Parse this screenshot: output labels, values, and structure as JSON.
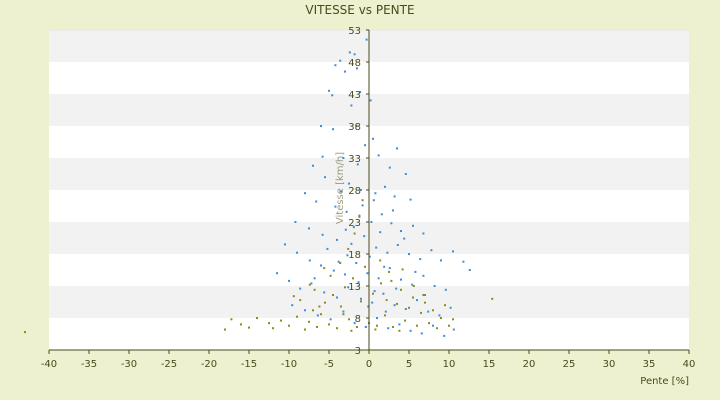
{
  "chart_data": {
    "type": "scatter",
    "title": "VITESSE vs PENTE",
    "xlabel": "Pente [%]",
    "ylabel": "Vitesse [km/h]",
    "xlim": [
      -40,
      40
    ],
    "ylim": [
      3,
      53
    ],
    "x_ticks": [
      -40,
      -35,
      -30,
      -25,
      -20,
      -15,
      -10,
      -5,
      0,
      5,
      10,
      15,
      20,
      25,
      30,
      35,
      40
    ],
    "y_ticks": [
      3,
      8,
      13,
      18,
      23,
      28,
      33,
      38,
      43,
      48,
      53
    ],
    "grid": "horizontal alternating bands",
    "legend": "none",
    "colors": {
      "background": "#eef1cf",
      "plot_band_light": "#ffffff",
      "plot_band_dark": "#f2f2f2",
      "axis": "#4a4a1c",
      "series_blue": "#3b8fd6",
      "series_olive": "#8c8c16"
    },
    "series": [
      {
        "color": "#3b8fd6",
        "points": [
          [
            -4.2,
            47.5
          ],
          [
            -3.6,
            48.2
          ],
          [
            -2.4,
            49.5
          ],
          [
            -1.8,
            49.2
          ],
          [
            -1.5,
            47.0
          ],
          [
            -3.0,
            46.5
          ],
          [
            -5.0,
            43.5
          ],
          [
            -4.6,
            42.8
          ],
          [
            -1.1,
            43.3
          ],
          [
            -0.3,
            51.5
          ],
          [
            0.2,
            42.0
          ],
          [
            -2.2,
            41.2
          ],
          [
            -6.0,
            38.0
          ],
          [
            -4.5,
            37.5
          ],
          [
            -1.6,
            38.0
          ],
          [
            0.5,
            36.0
          ],
          [
            -0.5,
            35.0
          ],
          [
            3.5,
            34.5
          ],
          [
            -5.8,
            33.2
          ],
          [
            -3.2,
            33.0
          ],
          [
            -1.4,
            32.0
          ],
          [
            1.2,
            33.4
          ],
          [
            2.6,
            31.5
          ],
          [
            4.6,
            30.5
          ],
          [
            -7.0,
            31.8
          ],
          [
            -5.5,
            30.0
          ],
          [
            -2.5,
            29.0
          ],
          [
            -1.0,
            28.0
          ],
          [
            0.8,
            27.5
          ],
          [
            2.0,
            28.5
          ],
          [
            3.2,
            27.0
          ],
          [
            5.2,
            26.5
          ],
          [
            -8.0,
            27.5
          ],
          [
            -6.6,
            26.2
          ],
          [
            -4.2,
            25.4
          ],
          [
            -2.8,
            24.6
          ],
          [
            -1.2,
            23.8
          ],
          [
            0.3,
            23.0
          ],
          [
            1.6,
            24.2
          ],
          [
            2.8,
            22.8
          ],
          [
            4.0,
            21.6
          ],
          [
            5.5,
            22.4
          ],
          [
            6.8,
            21.2
          ],
          [
            -9.2,
            23.0
          ],
          [
            -7.5,
            22.0
          ],
          [
            -5.8,
            21.0
          ],
          [
            -4.0,
            20.2
          ],
          [
            -2.2,
            19.6
          ],
          [
            -0.6,
            20.8
          ],
          [
            0.9,
            19.0
          ],
          [
            2.3,
            18.2
          ],
          [
            3.6,
            19.4
          ],
          [
            5.0,
            18.0
          ],
          [
            6.4,
            17.2
          ],
          [
            7.8,
            18.6
          ],
          [
            9.0,
            17.0
          ],
          [
            10.5,
            18.4
          ],
          [
            11.8,
            16.8
          ],
          [
            -10.5,
            19.5
          ],
          [
            -9.0,
            18.2
          ],
          [
            -7.4,
            17.0
          ],
          [
            -6.0,
            16.2
          ],
          [
            -4.4,
            15.4
          ],
          [
            -3.0,
            14.8
          ],
          [
            -1.6,
            16.6
          ],
          [
            -0.2,
            15.0
          ],
          [
            1.2,
            14.2
          ],
          [
            2.6,
            15.8
          ],
          [
            4.0,
            14.0
          ],
          [
            5.4,
            13.2
          ],
          [
            6.8,
            14.6
          ],
          [
            8.2,
            13.0
          ],
          [
            9.6,
            12.4
          ],
          [
            12.6,
            15.5
          ],
          [
            -11.5,
            15.0
          ],
          [
            -10.0,
            13.8
          ],
          [
            -8.6,
            12.6
          ],
          [
            -7.2,
            13.4
          ],
          [
            -5.6,
            12.0
          ],
          [
            -4.0,
            11.2
          ],
          [
            -2.6,
            12.8
          ],
          [
            -1.0,
            11.0
          ],
          [
            0.4,
            10.4
          ],
          [
            1.8,
            11.8
          ],
          [
            3.2,
            10.0
          ],
          [
            4.6,
            9.4
          ],
          [
            6.0,
            10.8
          ],
          [
            7.4,
            9.0
          ],
          [
            8.8,
            8.4
          ],
          [
            10.2,
            9.6
          ],
          [
            -9.6,
            10.0
          ],
          [
            -8.0,
            9.2
          ],
          [
            -6.4,
            8.4
          ],
          [
            -4.8,
            7.8
          ],
          [
            -3.2,
            9.0
          ],
          [
            -1.8,
            7.2
          ],
          [
            -0.4,
            6.6
          ],
          [
            1.0,
            8.0
          ],
          [
            2.4,
            6.4
          ],
          [
            3.8,
            7.0
          ],
          [
            5.2,
            6.0
          ],
          [
            6.6,
            5.6
          ],
          [
            8.0,
            6.8
          ],
          [
            9.4,
            5.2
          ],
          [
            10.6,
            6.2
          ],
          [
            -0.8,
            25.6
          ],
          [
            0.6,
            26.4
          ],
          [
            -1.9,
            22.2
          ],
          [
            1.4,
            21.4
          ],
          [
            -2.7,
            17.8
          ],
          [
            0.1,
            17.6
          ],
          [
            1.9,
            16.0
          ],
          [
            -1.3,
            13.6
          ],
          [
            0.7,
            12.2
          ],
          [
            -0.1,
            9.8
          ],
          [
            2.1,
            9.0
          ],
          [
            -3.5,
            27.8
          ],
          [
            -2.9,
            21.8
          ],
          [
            3.0,
            24.8
          ],
          [
            4.4,
            20.4
          ],
          [
            -5.2,
            18.8
          ],
          [
            -3.8,
            16.8
          ],
          [
            3.4,
            12.6
          ],
          [
            5.8,
            15.2
          ],
          [
            -6.8,
            14.2
          ],
          [
            7.0,
            11.6
          ]
        ]
      },
      {
        "color": "#8c8c16",
        "points": [
          [
            -43.0,
            5.8
          ],
          [
            -18.0,
            6.2
          ],
          [
            -17.2,
            7.8
          ],
          [
            -16.0,
            7.0
          ],
          [
            -15.0,
            6.5
          ],
          [
            -14.0,
            8.0
          ],
          [
            -12.5,
            7.2
          ],
          [
            -12.0,
            6.4
          ],
          [
            -11.0,
            7.6
          ],
          [
            -10.0,
            6.8
          ],
          [
            -9.0,
            8.2
          ],
          [
            -8.0,
            6.2
          ],
          [
            -7.5,
            7.4
          ],
          [
            -7.0,
            9.2
          ],
          [
            -6.5,
            6.6
          ],
          [
            -6.0,
            8.6
          ],
          [
            -5.5,
            10.4
          ],
          [
            -5.0,
            7.0
          ],
          [
            -4.5,
            11.6
          ],
          [
            -4.0,
            6.4
          ],
          [
            -3.5,
            9.8
          ],
          [
            -3.0,
            12.8
          ],
          [
            -2.5,
            7.8
          ],
          [
            -2.0,
            14.2
          ],
          [
            -1.5,
            6.6
          ],
          [
            -1.0,
            10.6
          ],
          [
            -0.5,
            16.0
          ],
          [
            0.0,
            7.2
          ],
          [
            0.5,
            11.8
          ],
          [
            1.0,
            6.8
          ],
          [
            1.5,
            13.4
          ],
          [
            2.0,
            8.4
          ],
          [
            2.5,
            15.2
          ],
          [
            3.0,
            6.6
          ],
          [
            3.5,
            10.2
          ],
          [
            4.0,
            12.4
          ],
          [
            4.5,
            7.6
          ],
          [
            5.0,
            9.6
          ],
          [
            5.5,
            11.2
          ],
          [
            6.0,
            6.8
          ],
          [
            6.5,
            8.8
          ],
          [
            7.0,
            10.4
          ],
          [
            7.5,
            7.2
          ],
          [
            8.0,
            9.2
          ],
          [
            8.5,
            6.4
          ],
          [
            9.0,
            8.0
          ],
          [
            9.5,
            10.0
          ],
          [
            10.0,
            6.8
          ],
          [
            10.5,
            7.8
          ],
          [
            15.4,
            11.0
          ],
          [
            -8.6,
            10.8
          ],
          [
            -6.8,
            12.4
          ],
          [
            -4.8,
            14.6
          ],
          [
            -3.6,
            16.6
          ],
          [
            -2.6,
            18.8
          ],
          [
            -1.8,
            21.2
          ],
          [
            -1.2,
            24.0
          ],
          [
            -0.8,
            26.4
          ],
          [
            -5.6,
            15.8
          ],
          [
            -7.4,
            13.2
          ],
          [
            -9.4,
            11.4
          ],
          [
            1.4,
            17.0
          ],
          [
            2.8,
            13.8
          ],
          [
            4.2,
            15.6
          ],
          [
            5.6,
            13.0
          ],
          [
            6.8,
            11.6
          ],
          [
            -2.2,
            6.0
          ],
          [
            0.8,
            6.2
          ],
          [
            3.8,
            6.0
          ],
          [
            -6.2,
            9.8
          ],
          [
            -3.2,
            8.6
          ],
          [
            2.2,
            10.8
          ]
        ]
      }
    ]
  }
}
